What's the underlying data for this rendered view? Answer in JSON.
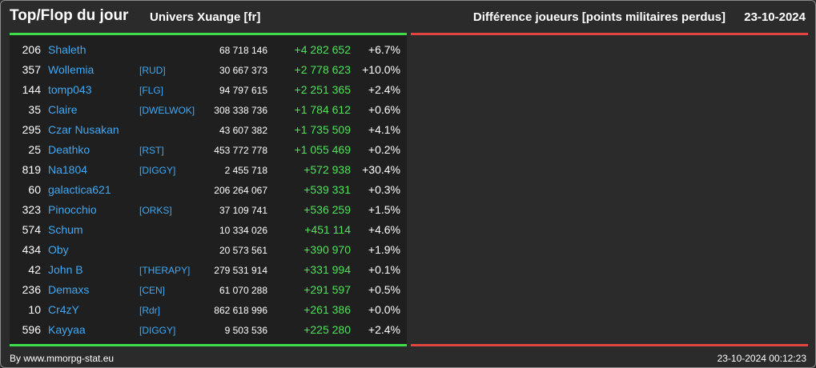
{
  "header": {
    "title": "Top/Flop du jour",
    "universe": "Univers Xuange [fr]",
    "metric": "Différence joueurs [points militaires perdus]",
    "date": "23-10-2024"
  },
  "colors": {
    "top_accent": "#3fdc4a",
    "flop_accent": "#e0453f",
    "player_link": "#3fa9f5",
    "gain": "#4fe35a"
  },
  "top_players": [
    {
      "rank": "206",
      "name": "Shaleth",
      "alliance": "",
      "points": "68 718 146",
      "diff": "+4 282 652",
      "percent": "+6.7%"
    },
    {
      "rank": "357",
      "name": "Wollemia",
      "alliance": "[RUD]",
      "points": "30 667 373",
      "diff": "+2 778 623",
      "percent": "+10.0%"
    },
    {
      "rank": "144",
      "name": "tomp043",
      "alliance": "[FLG]",
      "points": "94 797 615",
      "diff": "+2 251 365",
      "percent": "+2.4%"
    },
    {
      "rank": "35",
      "name": "Claire",
      "alliance": "[DWELWOK]",
      "points": "308 338 736",
      "diff": "+1 784 612",
      "percent": "+0.6%"
    },
    {
      "rank": "295",
      "name": "Czar Nusakan",
      "alliance": "",
      "points": "43 607 382",
      "diff": "+1 735 509",
      "percent": "+4.1%"
    },
    {
      "rank": "25",
      "name": "Deathko",
      "alliance": "[RST]",
      "points": "453 772 778",
      "diff": "+1 055 469",
      "percent": "+0.2%"
    },
    {
      "rank": "819",
      "name": "Na1804",
      "alliance": "[DIGGY]",
      "points": "2 455 718",
      "diff": "+572 938",
      "percent": "+30.4%"
    },
    {
      "rank": "60",
      "name": "galactica621",
      "alliance": "",
      "points": "206 264 067",
      "diff": "+539 331",
      "percent": "+0.3%"
    },
    {
      "rank": "323",
      "name": "Pinocchio",
      "alliance": "[ORKS]",
      "points": "37 109 741",
      "diff": "+536 259",
      "percent": "+1.5%"
    },
    {
      "rank": "574",
      "name": "Schum",
      "alliance": "",
      "points": "10 334 026",
      "diff": "+451 114",
      "percent": "+4.6%"
    },
    {
      "rank": "434",
      "name": "Oby",
      "alliance": "",
      "points": "20 573 561",
      "diff": "+390 970",
      "percent": "+1.9%"
    },
    {
      "rank": "42",
      "name": "John B",
      "alliance": "[THERAPY]",
      "points": "279 531 914",
      "diff": "+331 994",
      "percent": "+0.1%"
    },
    {
      "rank": "236",
      "name": "Demaxs",
      "alliance": "[CEN]",
      "points": "61 070 288",
      "diff": "+291 597",
      "percent": "+0.5%"
    },
    {
      "rank": "10",
      "name": "Cr4zY",
      "alliance": "[Rdr]",
      "points": "862 618 996",
      "diff": "+261 386",
      "percent": "+0.0%"
    },
    {
      "rank": "596",
      "name": "Kayyaa",
      "alliance": "[DIGGY]",
      "points": "9 503 536",
      "diff": "+225 280",
      "percent": "+2.4%"
    }
  ],
  "footer": {
    "credit": "By www.mmorpg-stat.eu",
    "timestamp": "23-10-2024 00:12:23"
  }
}
